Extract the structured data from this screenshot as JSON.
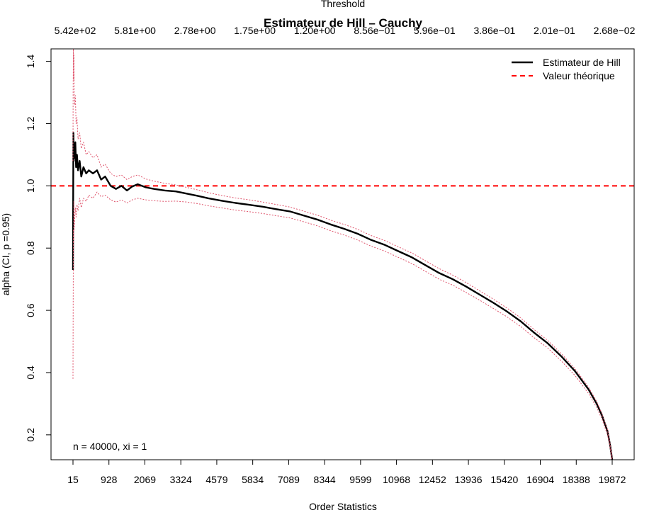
{
  "chart_data": {
    "type": "line",
    "title": "Estimateur de Hill – Cauchy",
    "top_axis_label": "Threshold",
    "xlabel": "Order Statistics",
    "ylabel": "alpha (CI, p =0.95)",
    "annotation": "n = 40000, xi = 1",
    "xlim": [
      15,
      19872
    ],
    "ylim": [
      0.12,
      1.44
    ],
    "grid": false,
    "legend_position": "top-right",
    "x_ticks": [
      15,
      928,
      2069,
      3324,
      4579,
      5834,
      7089,
      8344,
      9599,
      10968,
      12452,
      13936,
      15420,
      16904,
      18388,
      19872
    ],
    "y_ticks": [
      0.2,
      0.4,
      0.6,
      0.8,
      1.0,
      1.2,
      1.4
    ],
    "y_tick_labels": [
      "0.2",
      "0.4",
      "0.6",
      "0.8",
      "1.0",
      "1.2",
      "1.4"
    ],
    "threshold_ticks": [
      "5.42e+02",
      "5.81e+00",
      "2.78e+00",
      "1.75e+00",
      "1.20e+00",
      "8.56e−01",
      "5.96e−01",
      "3.86e−01",
      "2.01e−01",
      "2.68e−02"
    ],
    "reference_line": {
      "name": "Valeur théorique",
      "y": 1.0,
      "color": "#ff0000"
    },
    "series": [
      {
        "name": "Estimateur de Hill",
        "color": "#000000",
        "x": [
          15,
          20,
          30,
          45,
          60,
          80,
          100,
          130,
          160,
          200,
          260,
          320,
          400,
          500,
          600,
          750,
          900,
          1050,
          1200,
          1400,
          1600,
          1800,
          2000,
          2200,
          2400,
          2700,
          3000,
          3400,
          3800,
          4200,
          4600,
          5000,
          5500,
          6000,
          6500,
          7000,
          7500,
          8000,
          8500,
          9000,
          9500,
          10000,
          10500,
          11000,
          11500,
          12000,
          12500,
          13000,
          13500,
          14000,
          14500,
          15000,
          15500,
          16000,
          16500,
          17000,
          17500,
          18000,
          18500,
          19000,
          19300,
          19500,
          19700,
          19800,
          19872
        ],
        "values": [
          0.73,
          0.9,
          1.17,
          1.08,
          1.13,
          1.09,
          1.14,
          1.06,
          1.1,
          1.05,
          1.08,
          1.03,
          1.06,
          1.04,
          1.05,
          1.04,
          1.05,
          1.02,
          1.03,
          1.0,
          0.99,
          1.0,
          0.985,
          0.998,
          1.005,
          0.995,
          0.99,
          0.985,
          0.982,
          0.975,
          0.968,
          0.96,
          0.952,
          0.945,
          0.939,
          0.933,
          0.925,
          0.918,
          0.905,
          0.892,
          0.876,
          0.862,
          0.846,
          0.826,
          0.81,
          0.79,
          0.77,
          0.745,
          0.72,
          0.7,
          0.676,
          0.65,
          0.624,
          0.596,
          0.565,
          0.528,
          0.494,
          0.452,
          0.405,
          0.346,
          0.3,
          0.262,
          0.212,
          0.165,
          0.12
        ]
      },
      {
        "name": "CI upper",
        "color": "#df536b",
        "x": [
          15,
          20,
          30,
          40,
          50,
          60,
          80,
          100,
          130,
          160,
          200,
          260,
          320,
          400,
          500,
          600,
          750,
          900,
          1050,
          1200,
          1400,
          1600,
          1800,
          2000,
          2200,
          2400,
          2700,
          3000,
          3400,
          3800,
          4200,
          4600,
          5000,
          5500,
          6000,
          6500,
          7000,
          7500,
          8000,
          8500,
          9000,
          9500,
          10000,
          10500,
          11000,
          11500,
          12000,
          12500,
          13000,
          13500,
          14000,
          14500,
          15000,
          15500,
          16000,
          16500,
          17000,
          17500,
          18000,
          18500,
          19000,
          19300,
          19500,
          19700,
          19800,
          19872
        ],
        "values": [
          1.08,
          1.3,
          1.44,
          1.34,
          1.42,
          1.3,
          1.26,
          1.29,
          1.2,
          1.22,
          1.15,
          1.17,
          1.12,
          1.14,
          1.1,
          1.11,
          1.09,
          1.1,
          1.06,
          1.07,
          1.04,
          1.03,
          1.035,
          1.02,
          1.03,
          1.035,
          1.022,
          1.015,
          1.008,
          1.003,
          0.995,
          0.987,
          0.978,
          0.969,
          0.961,
          0.955,
          0.948,
          0.94,
          0.932,
          0.919,
          0.906,
          0.89,
          0.876,
          0.86,
          0.84,
          0.824,
          0.804,
          0.784,
          0.759,
          0.734,
          0.713,
          0.689,
          0.662,
          0.636,
          0.607,
          0.576,
          0.538,
          0.503,
          0.461,
          0.413,
          0.353,
          0.307,
          0.268,
          0.217,
          0.17,
          0.125
        ]
      },
      {
        "name": "CI lower",
        "color": "#df536b",
        "x": [
          15,
          20,
          30,
          40,
          50,
          60,
          80,
          100,
          130,
          160,
          200,
          260,
          320,
          400,
          500,
          600,
          750,
          900,
          1050,
          1200,
          1400,
          1600,
          1800,
          2000,
          2200,
          2400,
          2700,
          3000,
          3400,
          3800,
          4200,
          4600,
          5000,
          5500,
          6000,
          6500,
          7000,
          7500,
          8000,
          8500,
          9000,
          9500,
          10000,
          10500,
          11000,
          11500,
          12000,
          12500,
          13000,
          13500,
          14000,
          14500,
          15000,
          15500,
          16000,
          16500,
          17000,
          17500,
          18000,
          18500,
          19000,
          19300,
          19500,
          19700,
          19800,
          19872
        ],
        "values": [
          0.38,
          0.55,
          0.86,
          0.82,
          0.95,
          0.86,
          0.9,
          0.93,
          0.9,
          0.94,
          0.92,
          0.96,
          0.93,
          0.96,
          0.95,
          0.97,
          0.96,
          0.98,
          0.965,
          0.97,
          0.955,
          0.948,
          0.955,
          0.945,
          0.955,
          0.96,
          0.955,
          0.952,
          0.95,
          0.951,
          0.948,
          0.943,
          0.936,
          0.929,
          0.922,
          0.917,
          0.911,
          0.904,
          0.897,
          0.885,
          0.872,
          0.856,
          0.842,
          0.826,
          0.806,
          0.79,
          0.77,
          0.75,
          0.725,
          0.7,
          0.681,
          0.657,
          0.632,
          0.606,
          0.579,
          0.548,
          0.512,
          0.479,
          0.437,
          0.391,
          0.333,
          0.288,
          0.25,
          0.2,
          0.156,
          0.115
        ]
      }
    ]
  }
}
